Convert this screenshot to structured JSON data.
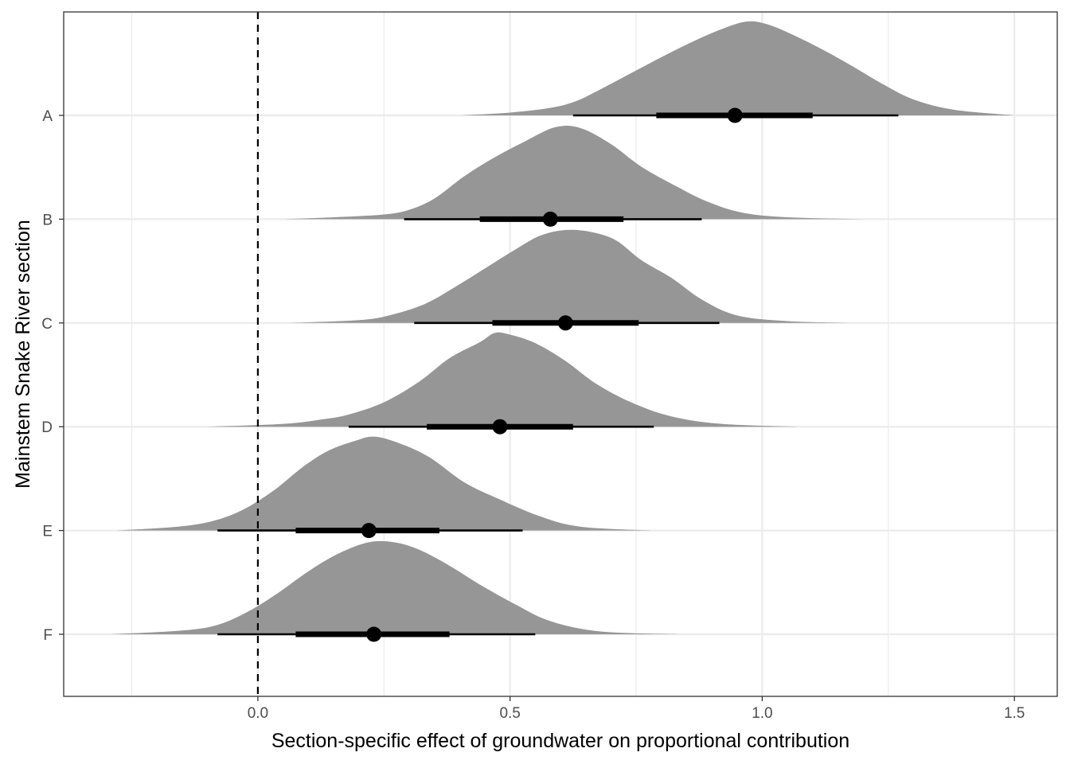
{
  "chart_data": {
    "type": "halfeye",
    "title": "",
    "xlabel": "Section-specific effect of groundwater on proportional contribution",
    "ylabel": "Mainstem Snake River section",
    "xlim": [
      -0.385,
      1.585
    ],
    "x_ticks": [
      0.0,
      0.5,
      1.0,
      1.5
    ],
    "x_tick_labels": [
      "0.0",
      "0.5",
      "1.0",
      "1.5"
    ],
    "x_minor_gridlines": [
      -0.25,
      0.25,
      0.75,
      1.25
    ],
    "categories": [
      "A",
      "B",
      "C",
      "D",
      "E",
      "F"
    ],
    "reference_line": {
      "x": 0.0,
      "style": "dashed"
    },
    "grid": true,
    "legend": "none",
    "colors": {
      "density": "#969696",
      "interval": "#000000",
      "grid": "#ebebeb",
      "panel_border": "#333333"
    },
    "series": [
      {
        "name": "A",
        "point": 0.946,
        "interval_66": [
          0.79,
          1.1
        ],
        "interval_95": [
          0.625,
          1.27
        ],
        "density_x": [
          0.4,
          0.5,
          0.58,
          0.63,
          0.68,
          0.74,
          0.8,
          0.86,
          0.92,
          0.97,
          1.01,
          1.06,
          1.12,
          1.18,
          1.24,
          1.3,
          1.38,
          1.5
        ],
        "density_y": [
          0.0,
          0.03,
          0.08,
          0.15,
          0.28,
          0.45,
          0.62,
          0.78,
          0.92,
          1.0,
          0.97,
          0.86,
          0.7,
          0.52,
          0.33,
          0.17,
          0.06,
          0.0
        ]
      },
      {
        "name": "B",
        "point": 0.58,
        "interval_66": [
          0.44,
          0.725
        ],
        "interval_95": [
          0.29,
          0.88
        ],
        "density_x": [
          0.05,
          0.15,
          0.25,
          0.3,
          0.35,
          0.41,
          0.47,
          0.53,
          0.59,
          0.64,
          0.7,
          0.76,
          0.83,
          0.89,
          0.96,
          1.05,
          1.2
        ],
        "density_y": [
          0.0,
          0.02,
          0.05,
          0.1,
          0.22,
          0.46,
          0.66,
          0.83,
          0.98,
          0.97,
          0.8,
          0.56,
          0.35,
          0.19,
          0.07,
          0.02,
          0.0
        ]
      },
      {
        "name": "C",
        "point": 0.61,
        "interval_66": [
          0.465,
          0.755
        ],
        "interval_95": [
          0.31,
          0.915
        ],
        "density_x": [
          0.06,
          0.2,
          0.26,
          0.33,
          0.39,
          0.45,
          0.51,
          0.56,
          0.61,
          0.66,
          0.71,
          0.76,
          0.82,
          0.88,
          0.95,
          1.05,
          1.18
        ],
        "density_y": [
          0.0,
          0.03,
          0.08,
          0.2,
          0.38,
          0.58,
          0.78,
          0.93,
          0.99,
          0.97,
          0.88,
          0.67,
          0.48,
          0.25,
          0.08,
          0.02,
          0.0
        ]
      },
      {
        "name": "D",
        "point": 0.48,
        "interval_66": [
          0.335,
          0.625
        ],
        "interval_95": [
          0.18,
          0.785
        ],
        "density_x": [
          -0.1,
          0.05,
          0.13,
          0.18,
          0.25,
          0.32,
          0.38,
          0.44,
          0.47,
          0.5,
          0.55,
          0.61,
          0.67,
          0.74,
          0.82,
          0.92,
          1.07
        ],
        "density_y": [
          0.0,
          0.03,
          0.08,
          0.13,
          0.26,
          0.48,
          0.73,
          0.9,
          1.0,
          0.98,
          0.89,
          0.7,
          0.46,
          0.26,
          0.11,
          0.03,
          0.0
        ]
      },
      {
        "name": "E",
        "point": 0.22,
        "interval_66": [
          0.075,
          0.36
        ],
        "interval_95": [
          -0.08,
          0.525
        ],
        "density_x": [
          -0.28,
          -0.16,
          -0.09,
          -0.03,
          0.03,
          0.09,
          0.14,
          0.19,
          0.23,
          0.28,
          0.34,
          0.41,
          0.48,
          0.56,
          0.64,
          0.78
        ],
        "density_y": [
          0.0,
          0.04,
          0.1,
          0.22,
          0.42,
          0.68,
          0.85,
          0.95,
          1.0,
          0.93,
          0.78,
          0.51,
          0.33,
          0.15,
          0.04,
          0.0
        ]
      },
      {
        "name": "F",
        "point": 0.23,
        "interval_66": [
          0.075,
          0.38
        ],
        "interval_95": [
          -0.08,
          0.55
        ],
        "density_x": [
          -0.29,
          -0.15,
          -0.08,
          -0.02,
          0.04,
          0.1,
          0.16,
          0.22,
          0.27,
          0.32,
          0.38,
          0.44,
          0.51,
          0.58,
          0.68,
          0.84
        ],
        "density_y": [
          0.0,
          0.04,
          0.1,
          0.24,
          0.44,
          0.67,
          0.86,
          0.98,
          0.98,
          0.9,
          0.73,
          0.53,
          0.32,
          0.14,
          0.03,
          0.0
        ]
      }
    ]
  }
}
